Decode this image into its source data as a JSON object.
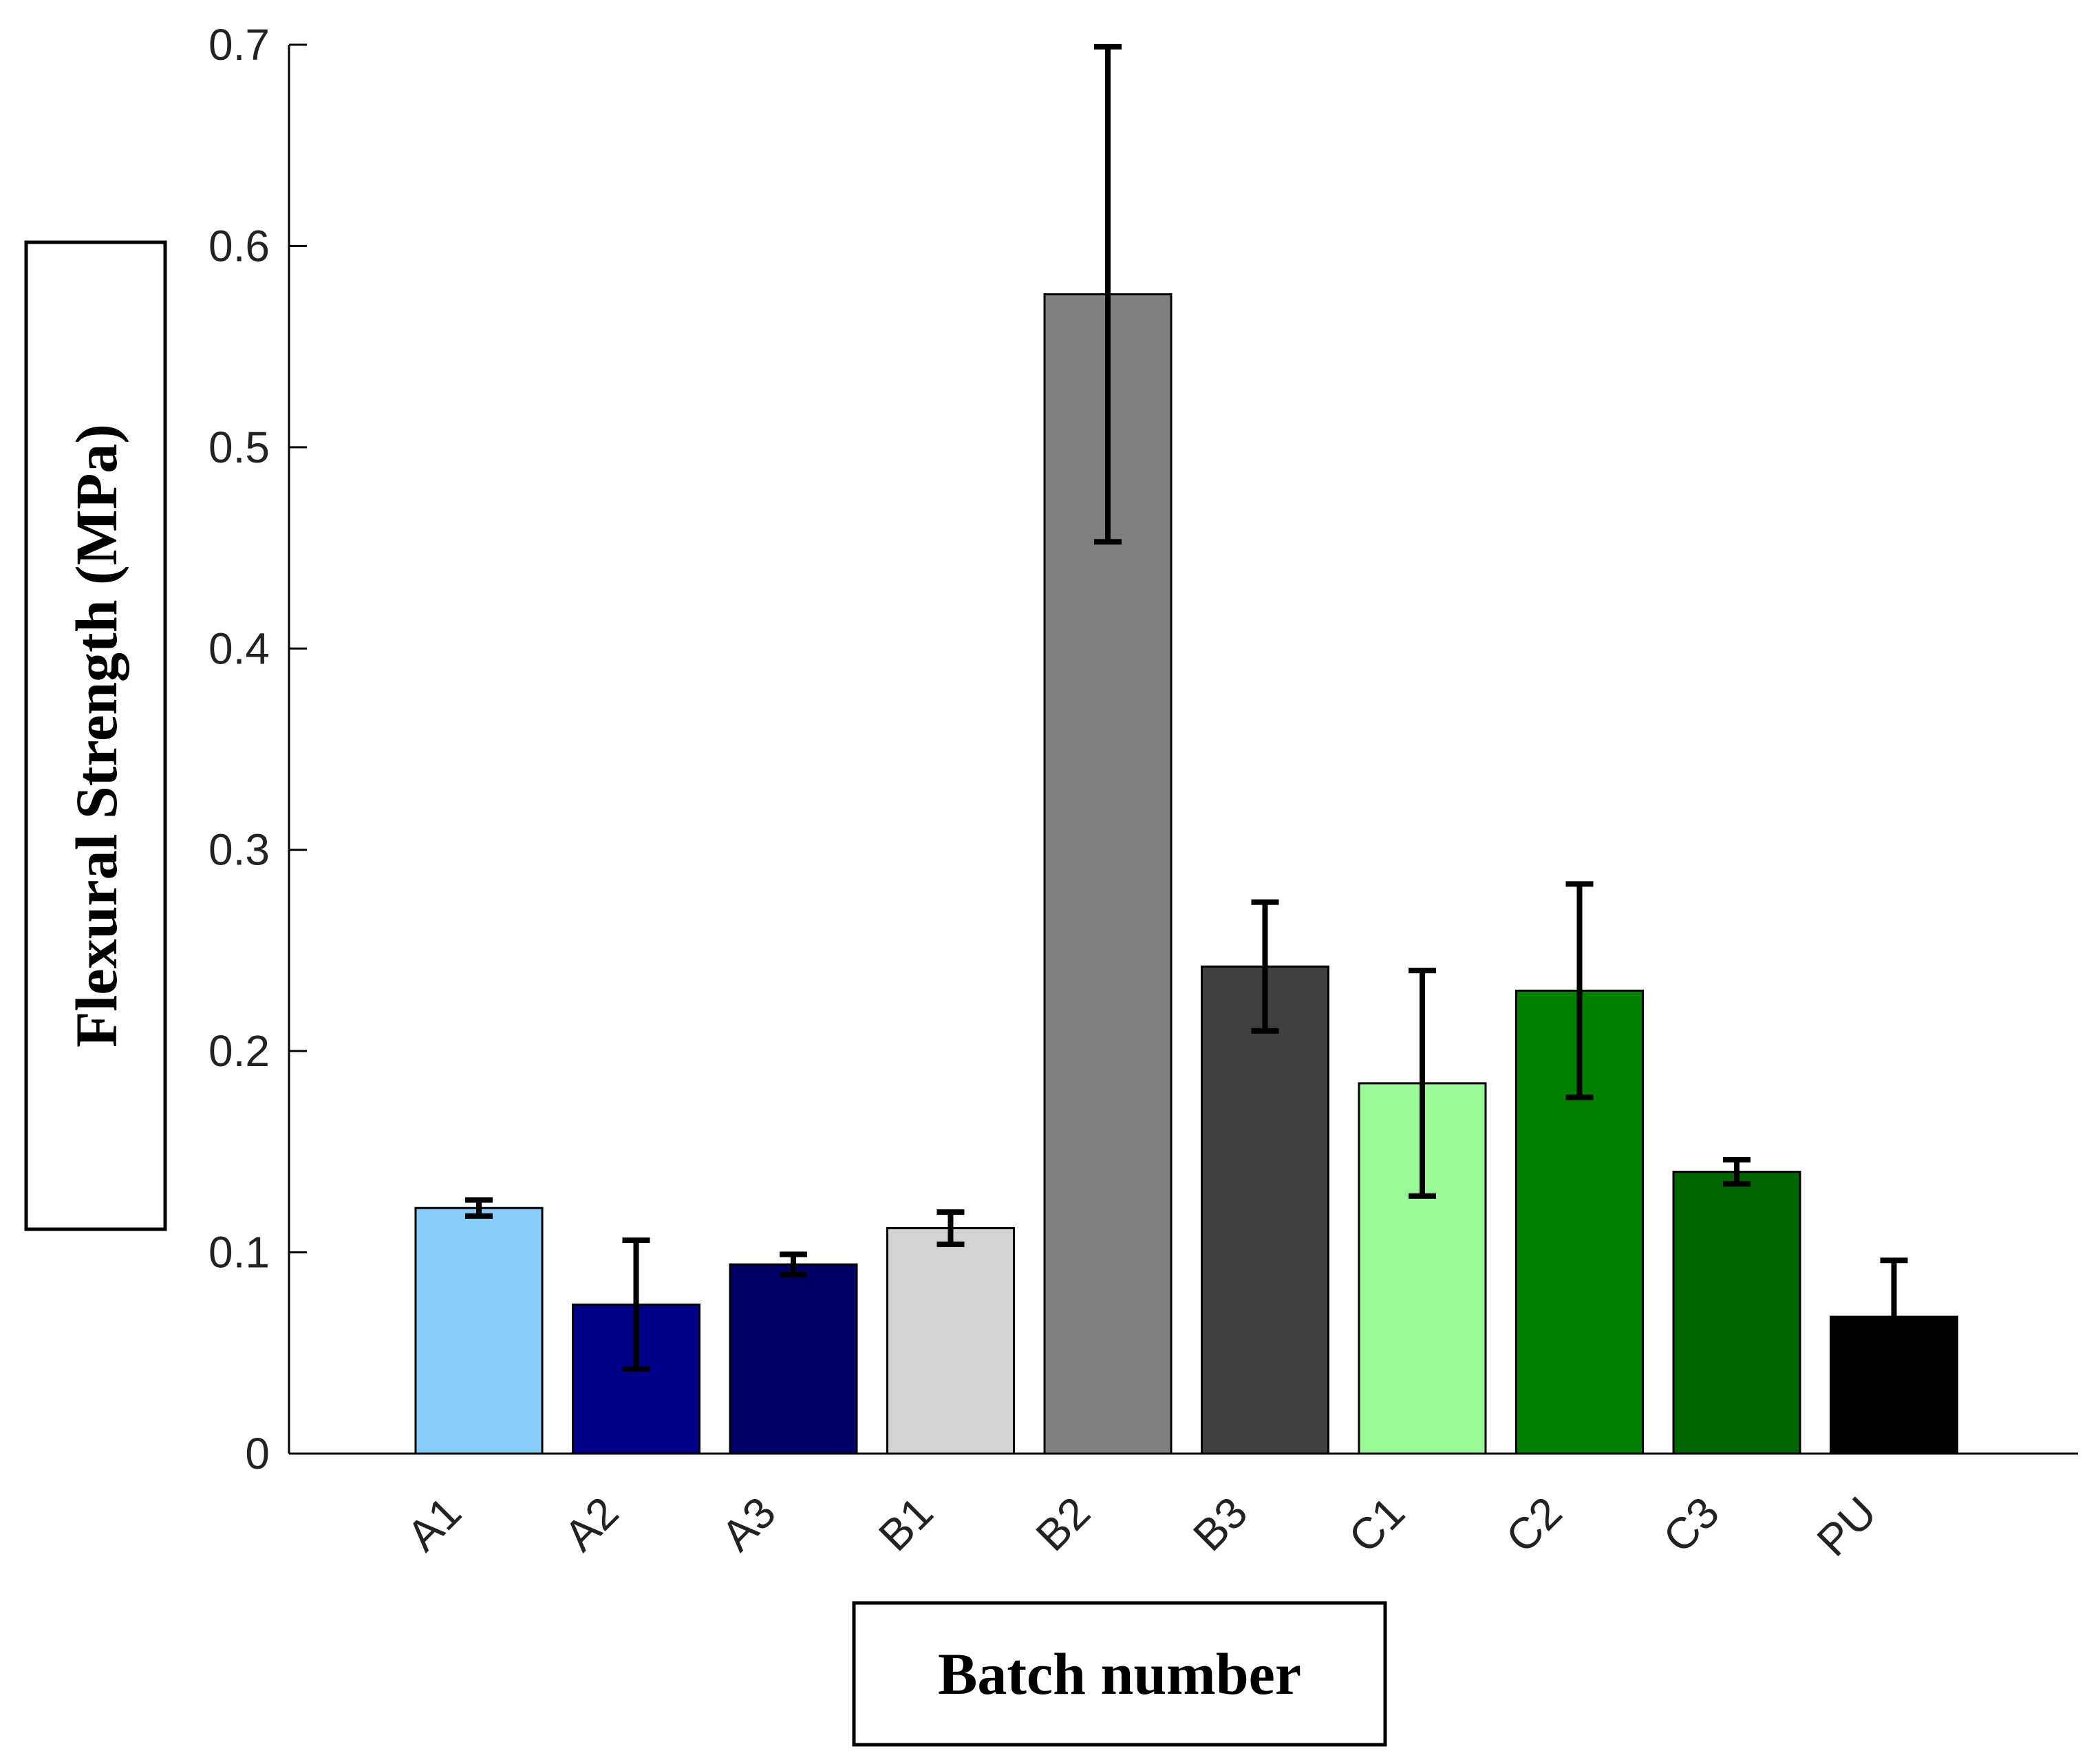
{
  "chart_data": {
    "type": "bar",
    "title": "",
    "xlabel": "Batch number",
    "ylabel": "Flexural Strength (MPa)",
    "categories": [
      "A1",
      "A2",
      "A3",
      "B1",
      "B2",
      "B3",
      "C1",
      "C2",
      "C3",
      "PU"
    ],
    "values": [
      0.122,
      0.074,
      0.094,
      0.112,
      0.576,
      0.242,
      0.184,
      0.23,
      0.14,
      0.068
    ],
    "errors": [
      0.004,
      0.032,
      0.005,
      0.008,
      0.123,
      0.032,
      0.056,
      0.053,
      0.006,
      0.028
    ],
    "colors": [
      "#87CEFA",
      "#00008B",
      "#000066",
      "#D3D3D3",
      "#808080",
      "#404040",
      "#98FB98",
      "#008000",
      "#006400",
      "#000000"
    ],
    "ylim": [
      0,
      0.7
    ],
    "yticks": [
      0,
      0.1,
      0.2,
      0.3,
      0.4,
      0.5,
      0.6,
      0.7
    ],
    "ytick_labels": [
      "0",
      "0.1",
      "0.2",
      "0.3",
      "0.4",
      "0.5",
      "0.6",
      "0.7"
    ],
    "grid": false,
    "legend": "none"
  }
}
